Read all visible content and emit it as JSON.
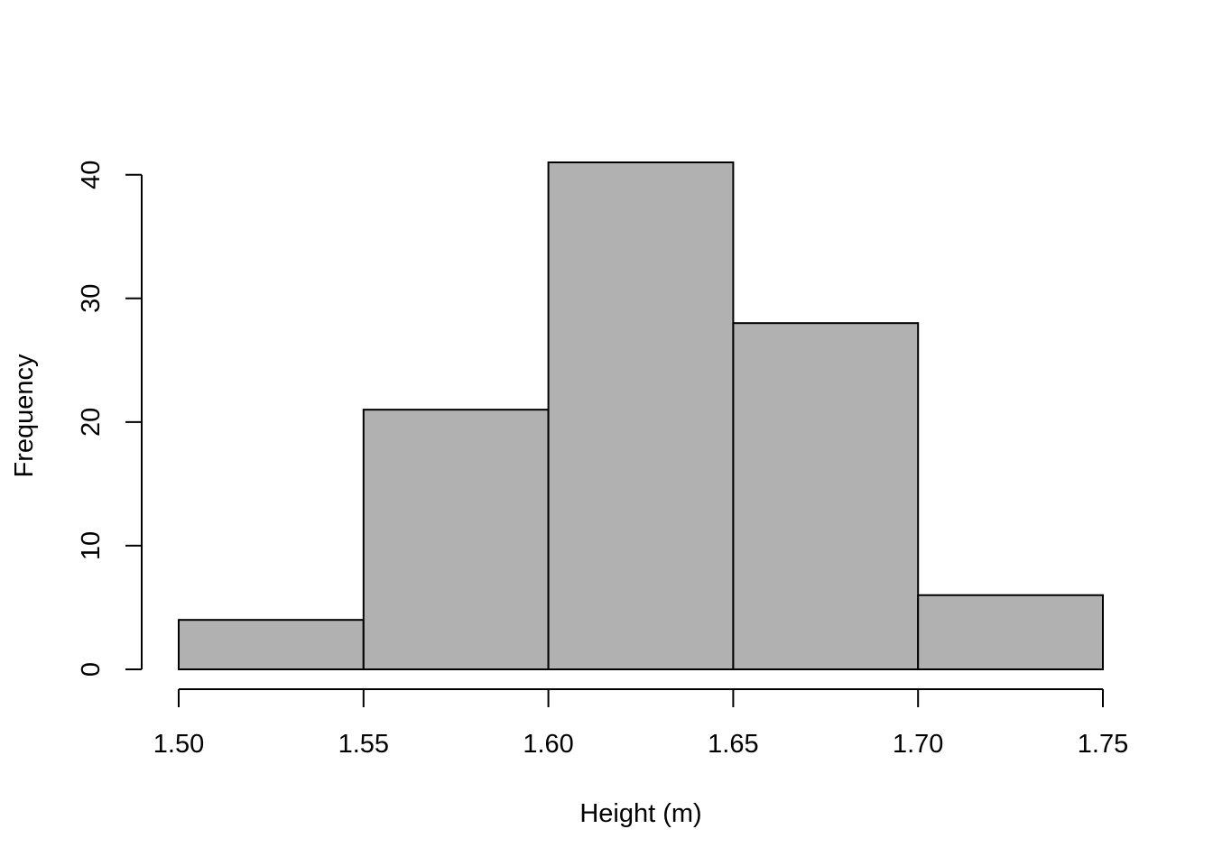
{
  "chart_data": {
    "type": "bar",
    "subtype": "histogram",
    "title": "",
    "xlabel": "Height (m)",
    "ylabel": "Frequency",
    "bins": [
      {
        "start": 1.5,
        "end": 1.55,
        "count": 4
      },
      {
        "start": 1.55,
        "end": 1.6,
        "count": 21
      },
      {
        "start": 1.6,
        "end": 1.65,
        "count": 41
      },
      {
        "start": 1.65,
        "end": 1.7,
        "count": 28
      },
      {
        "start": 1.7,
        "end": 1.75,
        "count": 6
      }
    ],
    "xlim": [
      1.5,
      1.75
    ],
    "ylim": [
      0,
      41
    ],
    "x_ticks": [
      "1.50",
      "1.55",
      "1.60",
      "1.65",
      "1.70",
      "1.75"
    ],
    "y_ticks": [
      "0",
      "10",
      "20",
      "30",
      "40"
    ],
    "grid": false,
    "legend": "none",
    "bar_color": "#b1b1b1",
    "edge_color": "#000000"
  }
}
